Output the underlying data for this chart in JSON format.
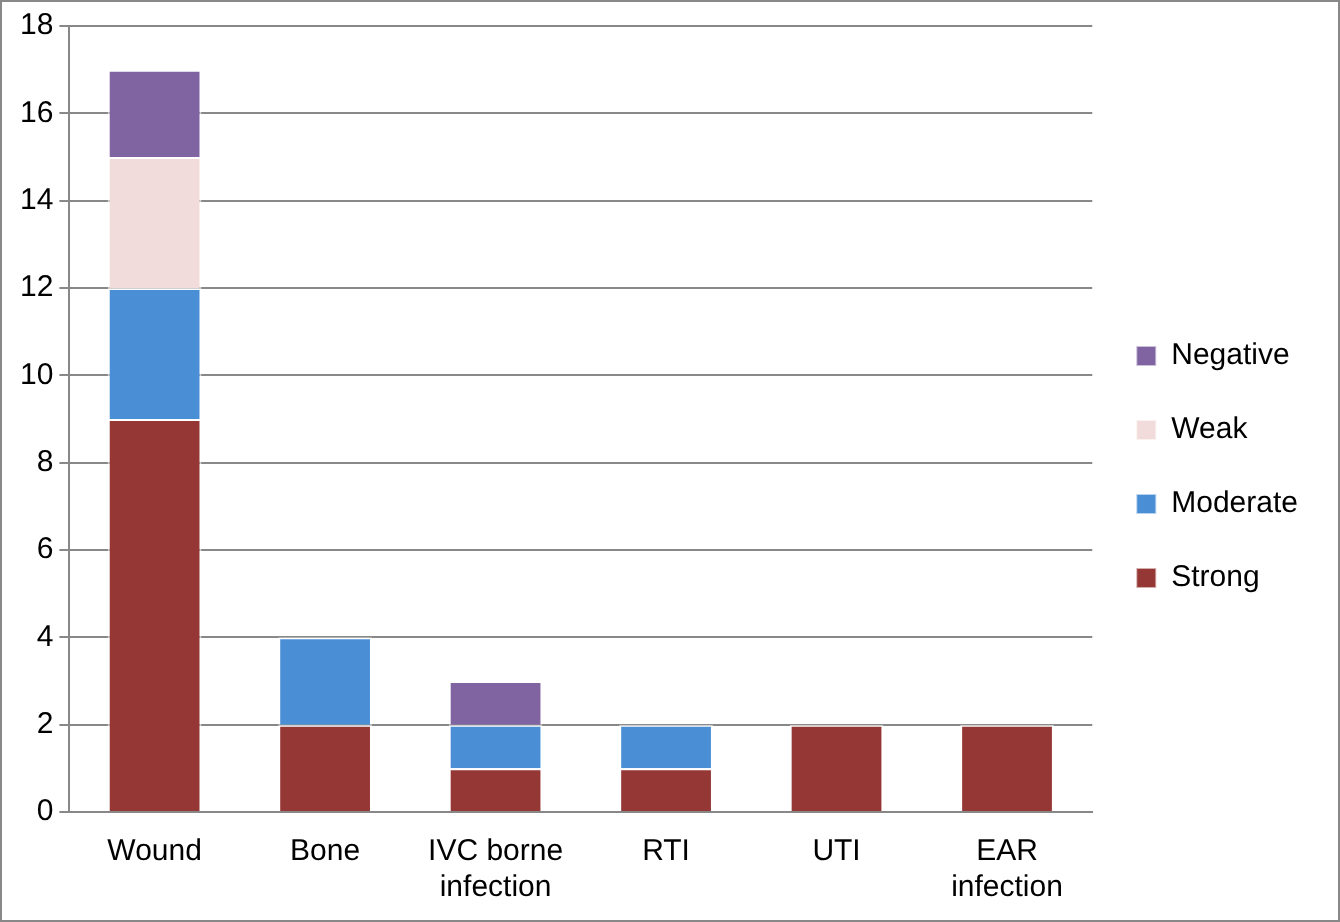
{
  "chart_data": {
    "type": "bar",
    "stacked": true,
    "categories": [
      "Wound",
      "Bone",
      "IVC borne infection",
      "RTI",
      "UTI",
      "EAR infection"
    ],
    "series": [
      {
        "name": "Strong",
        "color": "#953735",
        "values": [
          9,
          2,
          1,
          1,
          2,
          2
        ]
      },
      {
        "name": "Moderate",
        "color": "#4a8fd6",
        "values": [
          3,
          2,
          1,
          1,
          0,
          0
        ]
      },
      {
        "name": "Weak",
        "color": "#f2dcdb",
        "values": [
          3,
          0,
          0,
          0,
          0,
          0
        ]
      },
      {
        "name": "Negative",
        "color": "#8064a2",
        "values": [
          2,
          0,
          1,
          0,
          0,
          0
        ]
      }
    ],
    "ylim": [
      0,
      18
    ],
    "yticks": [
      0,
      2,
      4,
      6,
      8,
      10,
      12,
      14,
      16,
      18
    ],
    "grid": "y",
    "legend": "right"
  }
}
